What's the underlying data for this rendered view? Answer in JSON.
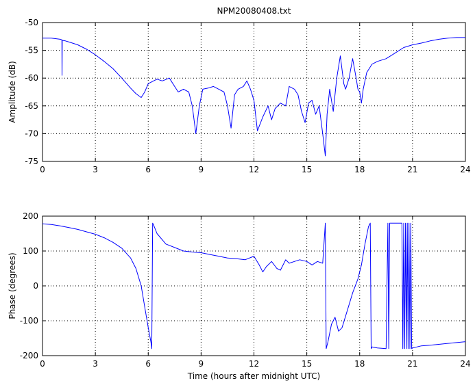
{
  "title": "NPM20080408.txt",
  "chart_data": [
    {
      "type": "line",
      "ylabel": "Amplitude (dB)",
      "xlabel": "",
      "xlim": [
        0,
        24
      ],
      "ylim": [
        -75,
        -50
      ],
      "xticks": [
        "0",
        "3",
        "6",
        "9",
        "12",
        "15",
        "18",
        "21",
        "24"
      ],
      "yticks": [
        "-75",
        "-70",
        "-65",
        "-60",
        "-55",
        "-50"
      ],
      "grid": true,
      "line_color": "#0000ff",
      "x": [
        0,
        0.5,
        1.0,
        1.1,
        1.11,
        1.12,
        1.3,
        1.5,
        2.0,
        2.5,
        3.0,
        3.5,
        4.0,
        4.5,
        5.0,
        5.3,
        5.6,
        5.8,
        6.0,
        6.3,
        6.5,
        6.8,
        7.2,
        7.5,
        7.7,
        8.0,
        8.3,
        8.5,
        8.7,
        8.9,
        9.1,
        9.4,
        9.7,
        10.0,
        10.3,
        10.5,
        10.7,
        10.9,
        11.1,
        11.4,
        11.6,
        11.8,
        12.0,
        12.2,
        12.5,
        12.8,
        13.0,
        13.2,
        13.5,
        13.8,
        14.0,
        14.3,
        14.5,
        14.7,
        14.9,
        15.1,
        15.3,
        15.5,
        15.7,
        15.9,
        16.05,
        16.15,
        16.3,
        16.5,
        16.7,
        16.9,
        17.1,
        17.2,
        17.4,
        17.6,
        17.8,
        17.9,
        18.0,
        18.1,
        18.2,
        18.4,
        18.7,
        19.0,
        19.5,
        20.0,
        20.5,
        21.0,
        21.5,
        22.0,
        22.5,
        23.0,
        23.5,
        24.0
      ],
      "y": [
        -52.8,
        -52.8,
        -53.0,
        -53.1,
        -59.5,
        -53.2,
        -53.3,
        -53.5,
        -54.0,
        -54.8,
        -55.8,
        -57.0,
        -58.3,
        -60.0,
        -61.8,
        -62.8,
        -63.5,
        -62.5,
        -61.0,
        -60.5,
        -60.2,
        -60.5,
        -60.0,
        -61.5,
        -62.5,
        -62.0,
        -62.5,
        -65.0,
        -70.0,
        -65.0,
        -62.0,
        -61.8,
        -61.5,
        -62.0,
        -62.5,
        -65.0,
        -69.0,
        -63.0,
        -62.0,
        -61.5,
        -60.5,
        -62.0,
        -64.0,
        -69.5,
        -67.0,
        -65.0,
        -67.5,
        -65.5,
        -64.5,
        -65.0,
        -61.5,
        -62.0,
        -63.0,
        -66.0,
        -68.0,
        -64.5,
        -64.0,
        -66.5,
        -65.0,
        -70.0,
        -74.0,
        -66.5,
        -62.0,
        -66.0,
        -60.0,
        -56.0,
        -61.0,
        -62.0,
        -60.0,
        -56.5,
        -60.0,
        -62.0,
        -62.5,
        -64.5,
        -62.0,
        -59.0,
        -57.5,
        -57.0,
        -56.5,
        -55.5,
        -54.5,
        -54.0,
        -53.7,
        -53.3,
        -53.0,
        -52.8,
        -52.7,
        -52.7
      ]
    },
    {
      "type": "line",
      "ylabel": "Phase (degrees)",
      "xlabel": "Time (hours after midnight UTC)",
      "xlim": [
        0,
        24
      ],
      "ylim": [
        -200,
        200
      ],
      "xticks": [
        "0",
        "3",
        "6",
        "9",
        "12",
        "15",
        "18",
        "21",
        "24"
      ],
      "yticks": [
        "-200",
        "-100",
        "0",
        "100",
        "200"
      ],
      "grid": true,
      "line_color": "#0000ff",
      "x": [
        0,
        0.5,
        1.0,
        1.5,
        2.0,
        2.5,
        3.0,
        3.5,
        4.0,
        4.5,
        5.0,
        5.3,
        5.6,
        5.8,
        6.0,
        6.15,
        6.2,
        6.25,
        6.3,
        6.5,
        7.0,
        7.5,
        8.0,
        8.5,
        9.0,
        9.5,
        10.0,
        10.5,
        11.0,
        11.5,
        12.0,
        12.3,
        12.5,
        12.7,
        13.0,
        13.3,
        13.5,
        13.8,
        14.0,
        14.3,
        14.6,
        15.0,
        15.3,
        15.6,
        15.9,
        16.05,
        16.1,
        16.15,
        16.2,
        16.4,
        16.6,
        16.8,
        17.0,
        17.3,
        17.6,
        17.9,
        18.1,
        18.3,
        18.5,
        18.6,
        18.65,
        18.7,
        19.0,
        19.5,
        19.6,
        19.65,
        19.7,
        20.0,
        20.4,
        20.45,
        20.5,
        20.55,
        20.6,
        20.65,
        20.7,
        20.75,
        20.8,
        20.85,
        20.9,
        20.95,
        21.0,
        21.5,
        22.0,
        23.0,
        24.0
      ],
      "y": [
        178,
        176,
        172,
        167,
        162,
        155,
        148,
        138,
        125,
        108,
        80,
        50,
        0,
        -60,
        -120,
        -160,
        -180,
        180,
        175,
        150,
        120,
        110,
        100,
        97,
        95,
        90,
        85,
        80,
        78,
        75,
        85,
        60,
        40,
        55,
        70,
        50,
        45,
        75,
        65,
        70,
        75,
        70,
        60,
        70,
        65,
        180,
        -180,
        -170,
        -160,
        -110,
        -90,
        -130,
        -120,
        -70,
        -20,
        20,
        60,
        120,
        170,
        180,
        -180,
        -175,
        -178,
        -180,
        180,
        -180,
        180,
        180,
        180,
        -180,
        180,
        -180,
        180,
        -180,
        180,
        -180,
        180,
        -180,
        180,
        -180,
        -178,
        -172,
        -170,
        -165,
        -160
      ]
    }
  ]
}
